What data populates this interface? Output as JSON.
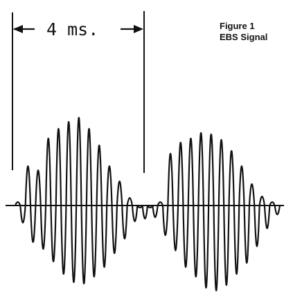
{
  "figure": {
    "caption_line1": "Figure 1",
    "caption_line2": "EBS Signal"
  },
  "annotation": {
    "interval_label": "4 ms."
  },
  "colors": {
    "ink": "#111111",
    "background": "#ffffff"
  },
  "signal": {
    "bursts": 2,
    "description_shown": "amplitude-modulated tone bursts on a horizontal baseline"
  }
}
